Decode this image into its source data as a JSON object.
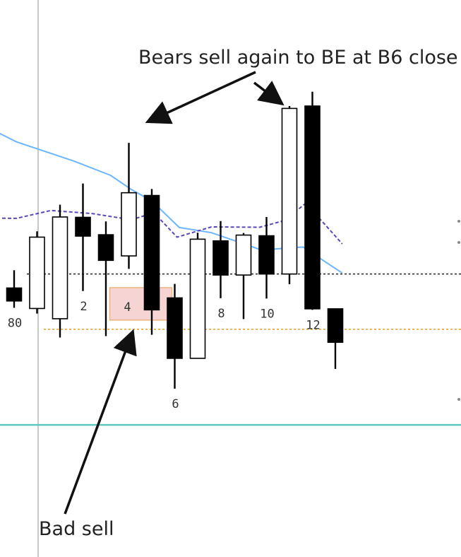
{
  "chart_data": {
    "type": "candlestick",
    "title": "",
    "xlabel": "",
    "ylabel": "",
    "annotations": {
      "top": "Bears sell again to BE at B6 close",
      "bottom": "Bad sell"
    },
    "bar_labels": [
      {
        "bar": 0,
        "text": "80"
      },
      {
        "bar": 3,
        "text": "2"
      },
      {
        "bar": 5,
        "text": "4"
      },
      {
        "bar": 7,
        "text": "6"
      },
      {
        "bar": 9,
        "text": "8"
      },
      {
        "bar": 11,
        "text": "10"
      },
      {
        "bar": 13,
        "text": "12"
      }
    ],
    "y_scale": {
      "min": 0,
      "max": 100
    },
    "candles": [
      {
        "open": 46.7,
        "high": 51.9,
        "low": 40.9,
        "close": 42.9
      },
      {
        "open": 40.7,
        "high": 63.3,
        "low": 39.2,
        "close": 61.6
      },
      {
        "open": 37.7,
        "high": 71.1,
        "low": 32.2,
        "close": 67.5
      },
      {
        "open": 67.4,
        "high": 77.3,
        "low": 45.8,
        "close": 61.9
      },
      {
        "open": 62.3,
        "high": 66.2,
        "low": 32.6,
        "close": 54.8
      },
      {
        "open": 56.1,
        "high": 89.2,
        "low": 52.3,
        "close": 74.6
      },
      {
        "open": 73.8,
        "high": 75.7,
        "low": 33.0,
        "close": 40.3
      },
      {
        "open": 43.8,
        "high": 47.9,
        "low": 17.2,
        "close": 26.1
      },
      {
        "open": 26.1,
        "high": 62.9,
        "low": 26.1,
        "close": 61.0
      },
      {
        "open": 60.5,
        "high": 66.3,
        "low": 43.7,
        "close": 50.5
      },
      {
        "open": 50.5,
        "high": 62.8,
        "low": 37.6,
        "close": 62.2
      },
      {
        "open": 62.0,
        "high": 67.5,
        "low": 43.6,
        "close": 50.8
      },
      {
        "open": 50.8,
        "high": 100.0,
        "low": 47.8,
        "close": 99.3
      },
      {
        "open": 100.0,
        "high": 104.2,
        "low": 40.3,
        "close": 40.6
      },
      {
        "open": 40.6,
        "high": 40.6,
        "low": 23.0,
        "close": 30.8
      }
    ],
    "series": [
      {
        "id": "ema",
        "points": [
          [
            -2,
            96.6
          ],
          [
            0.1,
            89.5
          ],
          [
            2.6,
            83.9
          ],
          [
            4.2,
            79.7
          ],
          [
            5.1,
            75.6
          ],
          [
            6.0,
            72.2
          ],
          [
            7.2,
            64.4
          ],
          [
            8.6,
            62.9
          ],
          [
            10.8,
            57.8
          ],
          [
            11.9,
            58.4
          ],
          [
            12.6,
            58.7
          ],
          [
            13.1,
            56.4
          ],
          [
            14.3,
            51.1
          ]
        ]
      },
      {
        "id": "ma",
        "points": [
          [
            -2,
            67.2
          ],
          [
            0.1,
            67.1
          ],
          [
            1.6,
            69.4
          ],
          [
            3.4,
            68.5
          ],
          [
            5.1,
            66.7
          ],
          [
            6.1,
            68.7
          ],
          [
            7.1,
            61.6
          ],
          [
            8.6,
            64.6
          ],
          [
            10.7,
            64.5
          ],
          [
            11.8,
            66.5
          ],
          [
            12.7,
            71.5
          ],
          [
            13.6,
            64.9
          ],
          [
            14.3,
            59.6
          ]
        ]
      }
    ],
    "horizontal_lines": [
      {
        "y": 50.8,
        "style": "dotted",
        "color": "#222222"
      },
      {
        "y": 34.6,
        "style": "dotted",
        "color": "#e6a21e"
      },
      {
        "y": 6.6,
        "style": "solid",
        "color": "#5cc9c0"
      }
    ],
    "highlight": {
      "bar": 5,
      "low": 37.3,
      "high": 46.8,
      "label": "4"
    },
    "colors": {
      "bull_body": "#ffffff",
      "bear_body": "#000000",
      "ema": "#6bb7ff",
      "ma": "#5b48b8",
      "highlight_fill": "#f4c6c6",
      "highlight_stroke": "#f0b27a"
    }
  }
}
